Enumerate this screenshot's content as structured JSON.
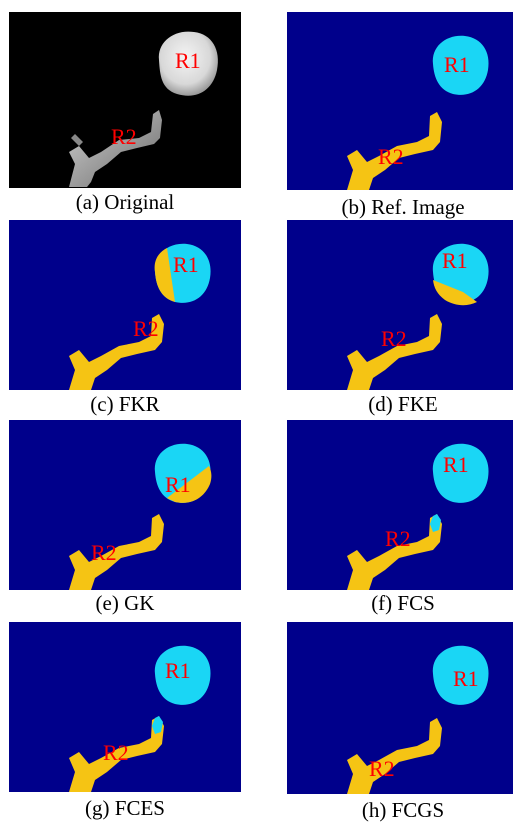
{
  "panels": [
    {
      "id": "a",
      "caption": "(a) Original",
      "labels": {
        "r1": "R1",
        "r2": "R2"
      },
      "variant": "original"
    },
    {
      "id": "b",
      "caption": "(b) Ref. Image",
      "labels": {
        "r1": "R1",
        "r2": "R2"
      },
      "variant": "ref"
    },
    {
      "id": "c",
      "caption": "(c) FKR",
      "labels": {
        "r1": "R1",
        "r2": "R2"
      },
      "variant": "fkr"
    },
    {
      "id": "d",
      "caption": "(d) FKE",
      "labels": {
        "r1": "R1",
        "r2": "R2"
      },
      "variant": "fke"
    },
    {
      "id": "e",
      "caption": "(e) GK",
      "labels": {
        "r1": "R1",
        "r2": "R2"
      },
      "variant": "gk"
    },
    {
      "id": "f",
      "caption": "(f) FCS",
      "labels": {
        "r1": "R1",
        "r2": "R2"
      },
      "variant": "fcs"
    },
    {
      "id": "g",
      "caption": "(g) FCES",
      "labels": {
        "r1": "R1",
        "r2": "R2"
      },
      "variant": "fces"
    },
    {
      "id": "h",
      "caption": "(h) FCGS",
      "labels": {
        "r1": "R1",
        "r2": "R2"
      },
      "variant": "fcgs"
    }
  ],
  "colors": {
    "background_segmented": "#00008b",
    "region1": "#1ad6f5",
    "region2": "#f5c414",
    "original_bg": "#000000",
    "label": "#ff0000"
  }
}
